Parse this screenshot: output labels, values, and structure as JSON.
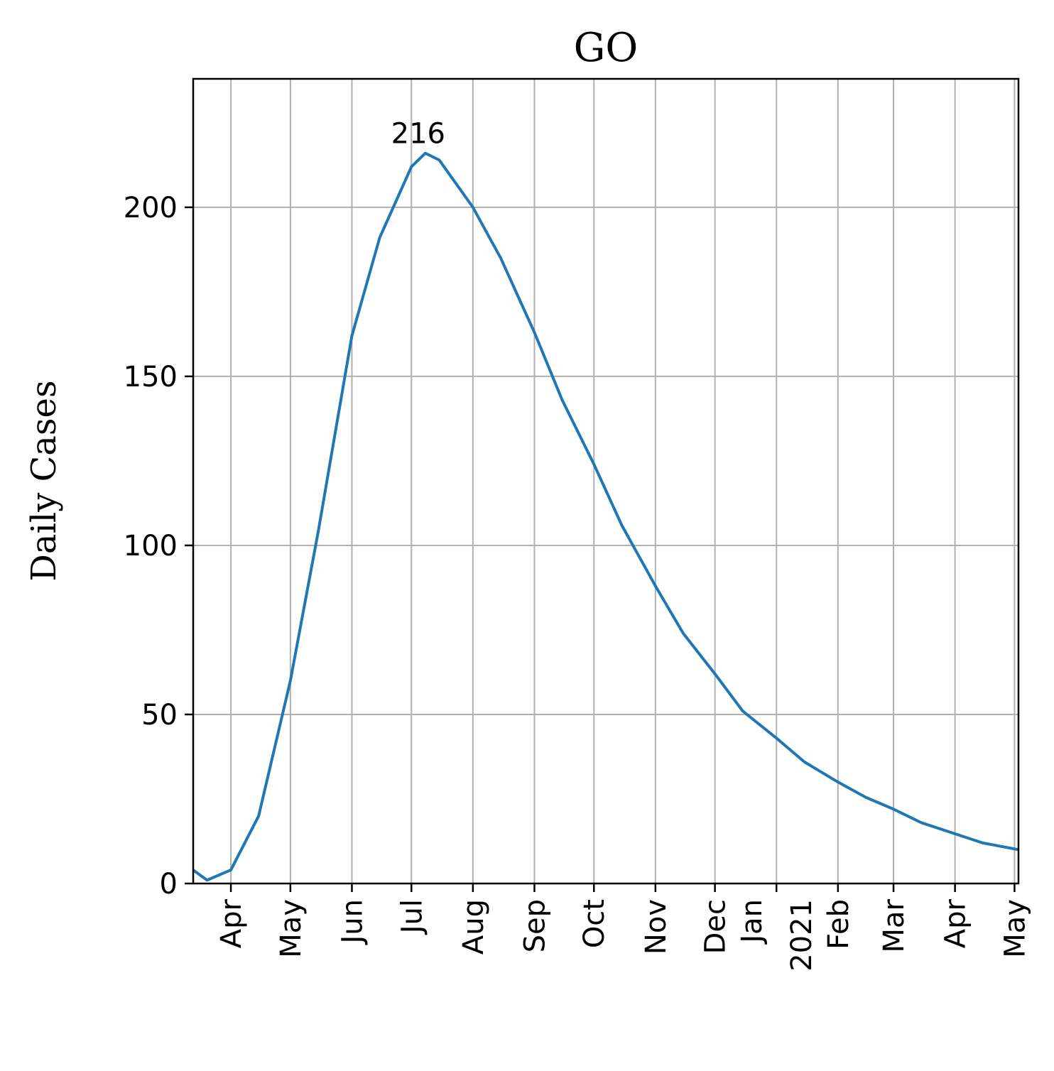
{
  "chart_data": {
    "type": "line",
    "title": "GO",
    "ylabel": "Daily Cases",
    "x": [
      "2020-03-13",
      "2020-03-20",
      "2020-04-01",
      "2020-04-15",
      "2020-05-01",
      "2020-05-15",
      "2020-06-01",
      "2020-06-15",
      "2020-07-01",
      "2020-07-08",
      "2020-07-15",
      "2020-08-01",
      "2020-08-15",
      "2020-09-01",
      "2020-09-15",
      "2020-10-01",
      "2020-10-15",
      "2020-11-01",
      "2020-11-15",
      "2020-12-01",
      "2020-12-15",
      "2021-01-01",
      "2021-01-15",
      "2021-02-01",
      "2021-02-15",
      "2021-03-01",
      "2021-03-15",
      "2021-04-01",
      "2021-04-15",
      "2021-05-03"
    ],
    "series": [
      {
        "name": "Daily Cases",
        "color": "#1f77b4",
        "values": [
          4,
          1,
          4,
          20,
          60,
          104,
          162,
          191,
          212,
          216,
          214,
          200,
          185,
          163,
          143,
          124,
          106,
          88,
          74,
          62,
          51,
          43,
          36,
          30,
          25.5,
          22,
          18,
          14.7,
          12,
          10
        ]
      }
    ],
    "annotations": [
      {
        "text": "216",
        "x": "2020-07-08",
        "y": 216
      }
    ],
    "xlim": [
      "2020-03-13",
      "2021-05-03"
    ],
    "xticks": [
      {
        "value": "2020-04-01",
        "label": "Apr"
      },
      {
        "value": "2020-05-01",
        "label": "May"
      },
      {
        "value": "2020-06-01",
        "label": "Jun"
      },
      {
        "value": "2020-07-01",
        "label": "Jul"
      },
      {
        "value": "2020-08-01",
        "label": "Aug"
      },
      {
        "value": "2020-09-01",
        "label": "Sep"
      },
      {
        "value": "2020-10-01",
        "label": "Oct"
      },
      {
        "value": "2020-11-01",
        "label": "Nov"
      },
      {
        "value": "2020-12-01",
        "label": "Dec"
      },
      {
        "value": "2021-01-01",
        "label": "Jan\n2021"
      },
      {
        "value": "2021-02-01",
        "label": "Feb"
      },
      {
        "value": "2021-03-01",
        "label": "Mar"
      },
      {
        "value": "2021-04-01",
        "label": "Apr"
      },
      {
        "value": "2021-05-01",
        "label": "May"
      }
    ],
    "ylim": [
      0,
      238
    ],
    "yticks": [
      0,
      50,
      100,
      150,
      200
    ],
    "grid": true
  }
}
